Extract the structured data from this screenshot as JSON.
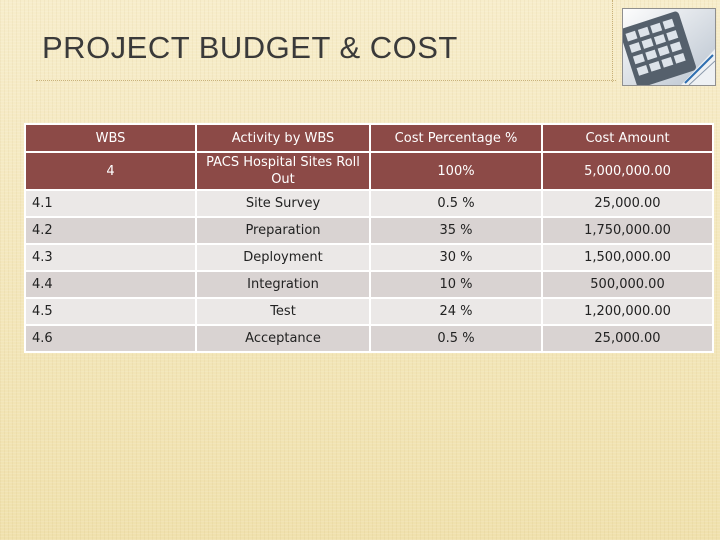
{
  "slide": {
    "title": "PROJECT BUDGET & COST"
  },
  "decor": {
    "photo_icon": "calculator-keyboard-photo-icon"
  },
  "table": {
    "headers": {
      "wbs": "WBS",
      "activity": "Activity by WBS",
      "percentage": "Cost Percentage %",
      "amount": "Cost Amount"
    },
    "total": {
      "wbs": "4",
      "activity": "PACS Hospital Sites Roll Out",
      "percentage": "100%",
      "amount": "5,000,000.00"
    },
    "rows": [
      {
        "wbs": "4.1",
        "activity": "Site Survey",
        "percentage": "0.5 %",
        "amount": "25,000.00"
      },
      {
        "wbs": "4.2",
        "activity": "Preparation",
        "percentage": "35 %",
        "amount": "1,750,000.00"
      },
      {
        "wbs": "4.3",
        "activity": "Deployment",
        "percentage": "30 %",
        "amount": "1,500,000.00"
      },
      {
        "wbs": "4.4",
        "activity": "Integration",
        "percentage": "10 %",
        "amount": "500,000.00"
      },
      {
        "wbs": "4.5",
        "activity": "Test",
        "percentage": "24 %",
        "amount": "1,200,000.00"
      },
      {
        "wbs": "4.6",
        "activity": "Acceptance",
        "percentage": "0.5 %",
        "amount": "25,000.00"
      }
    ]
  },
  "colors": {
    "header_bg": "#8c4a47",
    "row_light": "#ebe8e7",
    "row_dark": "#d9d3d2",
    "background": "#f3e7bd"
  }
}
